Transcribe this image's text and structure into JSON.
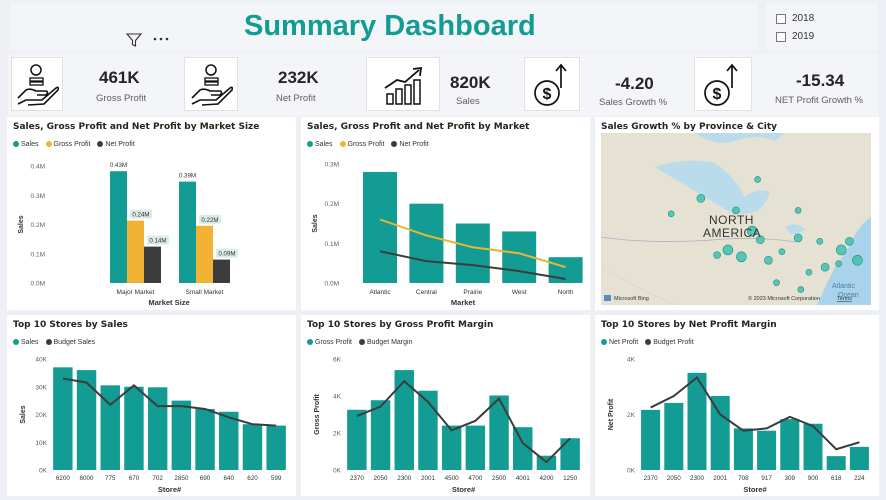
{
  "header": {
    "title": "Summary Dashboard",
    "filter_icon": "filter-icon",
    "more_icon": "more-options-icon"
  },
  "year_slicer": {
    "options": [
      "2018",
      "2019"
    ]
  },
  "kpis": [
    {
      "value": "461K",
      "label": "Gross Profit",
      "icon": "money-hand-icon"
    },
    {
      "value": "232K",
      "label": "Net Profit",
      "icon": "money-hand-icon"
    },
    {
      "value": "820K",
      "label": "Sales",
      "icon": "growth-chart-icon"
    },
    {
      "value": "-4.20",
      "label": "Sales Growth %",
      "icon": "dollar-up-icon"
    },
    {
      "value": "-15.34",
      "label": "NET Profit Growth %",
      "icon": "dollar-up-icon"
    }
  ],
  "colors": {
    "teal": "#129c94",
    "orange": "#f2b233",
    "dark": "#3c3c3c",
    "line_orange": "#e8b634"
  },
  "map": {
    "title": "Sales Growth % by Province & City",
    "label1": "NORTH",
    "label2": "AMERICA",
    "ocean1": "Atlantic",
    "ocean2": "Ocean",
    "attribution": "© 2023 Microsoft Corporation",
    "terms": "Terms",
    "bing": "Microsoft Bing",
    "bubbles": [
      [
        0.37,
        0.38,
        4
      ],
      [
        0.58,
        0.27,
        3
      ],
      [
        0.5,
        0.45,
        3.5
      ],
      [
        0.73,
        0.45,
        3
      ],
      [
        0.56,
        0.57,
        5
      ],
      [
        0.59,
        0.62,
        4
      ],
      [
        0.73,
        0.61,
        4
      ],
      [
        0.81,
        0.63,
        3
      ],
      [
        0.89,
        0.68,
        5
      ],
      [
        0.92,
        0.63,
        4
      ],
      [
        0.95,
        0.74,
        5
      ],
      [
        0.88,
        0.76,
        3
      ],
      [
        0.83,
        0.78,
        4
      ],
      [
        0.77,
        0.81,
        3
      ],
      [
        0.65,
        0.87,
        3
      ],
      [
        0.43,
        0.71,
        3.5
      ],
      [
        0.47,
        0.68,
        5
      ],
      [
        0.52,
        0.72,
        5
      ],
      [
        0.62,
        0.74,
        4
      ],
      [
        0.74,
        0.91,
        3
      ],
      [
        0.67,
        0.69,
        3
      ],
      [
        0.26,
        0.47,
        3
      ]
    ]
  },
  "chart_data": [
    {
      "type": "bar",
      "title": "Sales, Gross Profit and Net Profit by Market Size",
      "xlabel": "Market Size",
      "ylabel": "Sales",
      "categories": [
        "Major Market",
        "Small Market"
      ],
      "series": [
        {
          "name": "Sales",
          "values": [
            0.43,
            0.39
          ],
          "labels": [
            "0.43M",
            "0.39M"
          ]
        },
        {
          "name": "Gross Profit",
          "values": [
            0.24,
            0.22
          ],
          "labels": [
            "0.24M",
            "0.22M"
          ]
        },
        {
          "name": "Net Profit",
          "values": [
            0.14,
            0.09
          ],
          "labels": [
            "0.14M",
            "0.09M"
          ]
        }
      ],
      "yticks": [
        "0.0M",
        "0.1M",
        "0.2M",
        "0.3M",
        "0.4M"
      ],
      "ylim": [
        0,
        0.45
      ]
    },
    {
      "type": "bar",
      "title": "Sales, Gross Profit and Net Profit by Market",
      "xlabel": "Market",
      "ylabel": "Sales",
      "categories": [
        "Atlantic",
        "Central",
        "Prairie",
        "West",
        "North"
      ],
      "series": [
        {
          "name": "Sales",
          "values": [
            0.28,
            0.2,
            0.15,
            0.13,
            0.065
          ]
        },
        {
          "name": "Gross Profit",
          "values": [
            0.16,
            0.12,
            0.09,
            0.075,
            0.04
          ]
        },
        {
          "name": "Net Profit",
          "values": [
            0.08,
            0.055,
            0.045,
            0.03,
            0.01
          ]
        }
      ],
      "yticks": [
        "0.0M",
        "0.1M",
        "0.2M",
        "0.3M"
      ],
      "ylim": [
        0,
        0.3
      ]
    },
    {
      "type": "bar",
      "title": "Top 10 Stores by Sales",
      "xlabel": "Store#",
      "ylabel": "Sales",
      "categories": [
        "6200",
        "6000",
        "775",
        "670",
        "702",
        "2850",
        "690",
        "640",
        "620",
        "599"
      ],
      "series": [
        {
          "name": "Sales",
          "values": [
            37000,
            36000,
            30500,
            30000,
            29800,
            25000,
            22000,
            21000,
            16500,
            16000
          ]
        },
        {
          "name": "Budget Sales",
          "values": [
            33000,
            31500,
            23500,
            30500,
            23000,
            23000,
            22000,
            19000,
            16500,
            16000
          ]
        }
      ],
      "yticks": [
        "0K",
        "10K",
        "20K",
        "30K",
        "40K"
      ],
      "ylim": [
        0,
        40000
      ]
    },
    {
      "type": "bar",
      "title": "Top 10 Stores by Gross Profit Margin",
      "xlabel": "Store#",
      "ylabel": "Gross Profit",
      "categories": [
        "2370",
        "2050",
        "2300",
        "2001",
        "4500",
        "4700",
        "2500",
        "4001",
        "4200",
        "1250"
      ],
      "series": [
        {
          "name": "Gross Profit",
          "values": [
            3800,
            4400,
            6300,
            5000,
            2800,
            2800,
            4700,
            2700,
            900,
            2000
          ]
        },
        {
          "name": "Budget Margin",
          "values": [
            3400,
            4000,
            5600,
            4300,
            2500,
            3100,
            4500,
            1700,
            500,
            2000
          ]
        }
      ],
      "yticks": [
        "0K",
        "2K",
        "4K",
        "6K"
      ],
      "ylim": [
        0,
        7000
      ]
    },
    {
      "type": "bar",
      "title": "Top 10 Stores by Net Profit Margin",
      "xlabel": "Store#",
      "ylabel": "Net Profit",
      "categories": [
        "2370",
        "2050",
        "2300",
        "2001",
        "708",
        "917",
        "309",
        "900",
        "618",
        "224"
      ],
      "series": [
        {
          "name": "Net Profit",
          "values": [
            2600,
            2900,
            4200,
            3200,
            1800,
            1700,
            2200,
            2000,
            600,
            1000
          ]
        },
        {
          "name": "Budget Profit",
          "values": [
            2700,
            3200,
            4000,
            2400,
            1700,
            1800,
            2300,
            1900,
            900,
            1200
          ]
        }
      ],
      "yticks": [
        "0K",
        "2K",
        "4K"
      ],
      "ylim": [
        0,
        4800
      ]
    }
  ]
}
